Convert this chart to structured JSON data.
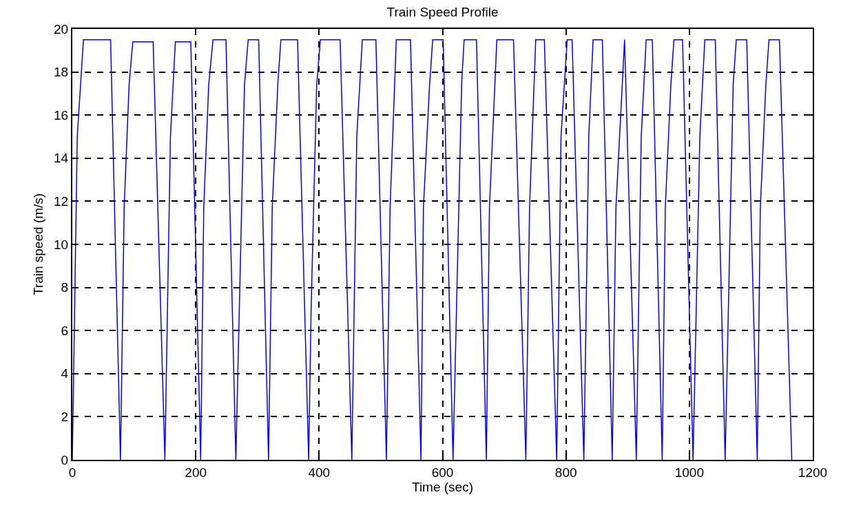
{
  "chart_data": {
    "type": "line",
    "title": "Train Speed Profile",
    "xlabel": "Time (sec)",
    "ylabel": "Train speed (m/s)",
    "x": [
      0,
      8,
      18,
      62,
      78,
      84,
      92,
      98,
      131,
      150,
      159,
      167,
      192,
      208,
      213,
      221,
      228,
      249,
      265,
      279,
      285,
      302,
      318,
      324,
      333,
      338,
      365,
      383,
      387,
      396,
      402,
      434,
      453,
      461,
      470,
      492,
      509,
      515,
      525,
      548,
      565,
      569,
      579,
      584,
      601,
      617,
      631,
      635,
      655,
      671,
      676,
      688,
      715,
      735,
      741,
      751,
      765,
      785,
      792,
      802,
      810,
      829,
      837,
      844,
      859,
      875,
      881,
      895,
      914,
      922,
      930,
      940,
      956,
      961,
      970,
      975,
      989,
      1006,
      1017,
      1025,
      1042,
      1058,
      1071,
      1076,
      1093,
      1110,
      1115,
      1124,
      1129,
      1146,
      1166
    ],
    "series": [
      {
        "color": "#0000ff",
        "values": [
          0,
          15,
          19.5,
          19.5,
          0,
          11.7,
          17.4,
          19.4,
          19.4,
          0,
          15,
          19.4,
          19.4,
          0,
          11.7,
          17.4,
          19.5,
          19.5,
          0,
          17.4,
          19.5,
          19.5,
          0,
          11.7,
          17.4,
          19.5,
          19.5,
          0,
          7,
          17.4,
          19.5,
          19.5,
          0,
          15,
          19.5,
          19.5,
          0,
          11.7,
          19.5,
          19.5,
          0,
          11.7,
          17.4,
          19.5,
          19.5,
          0,
          17.5,
          19.5,
          19.5,
          0,
          11.7,
          19.5,
          19.5,
          0,
          11.7,
          19.5,
          19.5,
          0,
          15,
          19.5,
          19.5,
          0,
          15,
          19.5,
          19.5,
          0,
          11.7,
          19.5,
          0,
          15,
          19.5,
          19.5,
          0,
          11.7,
          17.4,
          19.5,
          19.5,
          0,
          15,
          19.5,
          19.5,
          0,
          17.4,
          19.5,
          19.5,
          0,
          11.7,
          17.4,
          19.5,
          19.5,
          0
        ]
      }
    ],
    "xlim": [
      0,
      1200
    ],
    "xticks": [
      0,
      200,
      400,
      600,
      800,
      1000,
      1200
    ],
    "ylim": [
      0,
      20
    ],
    "yticks": [
      0,
      2,
      4,
      6,
      8,
      10,
      12,
      14,
      16,
      18,
      20
    ],
    "grid": true,
    "marker": "none",
    "line_style": "solid"
  }
}
